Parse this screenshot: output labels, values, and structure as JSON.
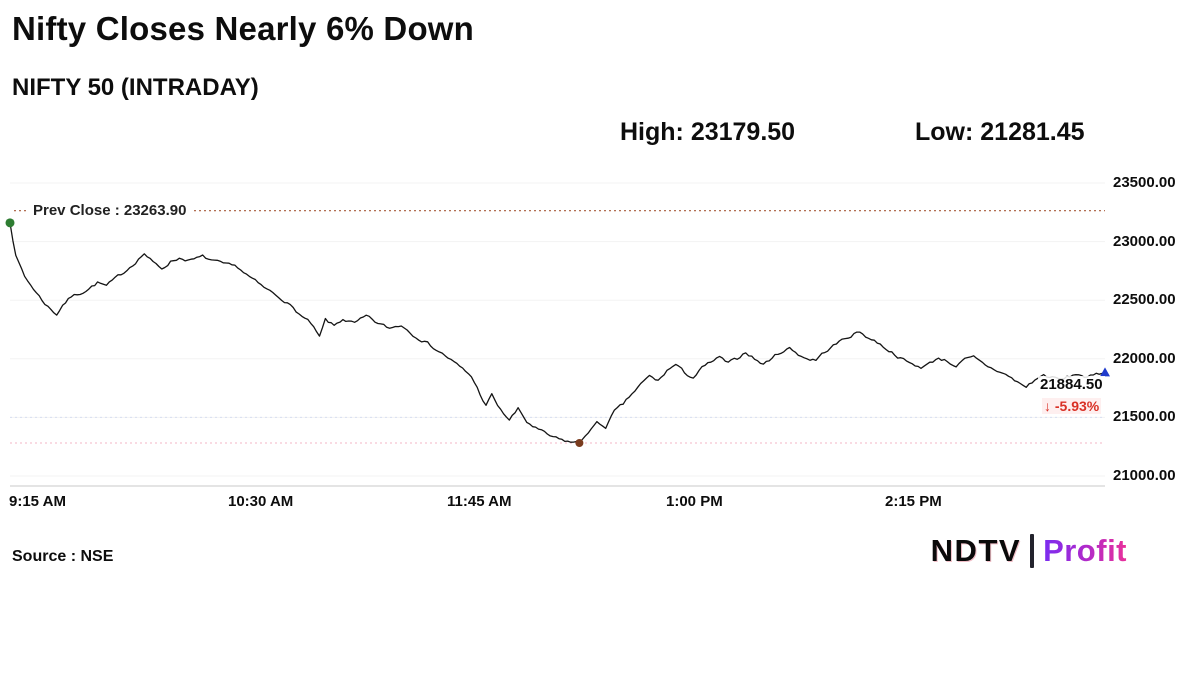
{
  "header": {
    "title": "Nifty Closes Nearly 6% Down",
    "subtitle": "NIFTY 50 (INTRADAY)",
    "high_label": "High: 23179.50",
    "low_label": "Low: 21281.45"
  },
  "chart_data": {
    "type": "line",
    "title": "NIFTY 50 (INTRADAY)",
    "prev_close": 23263.9,
    "prev_close_label": "Prev Close : 23263.90",
    "high": 23179.5,
    "low": 21281.45,
    "low_minute": 195,
    "last": 21884.5,
    "last_label": "21884.50",
    "change_label": "↓ -5.93%",
    "ylim": [
      21000,
      23500
    ],
    "xlim_minutes": [
      0,
      375
    ],
    "x_ticks": [
      {
        "minute": 0,
        "label": "9:15 AM"
      },
      {
        "minute": 75,
        "label": "10:30 AM"
      },
      {
        "minute": 150,
        "label": "11:45 AM"
      },
      {
        "minute": 225,
        "label": "1:00 PM"
      },
      {
        "minute": 300,
        "label": "2:15 PM"
      }
    ],
    "y_ticks": [
      {
        "value": 23500,
        "label": "23500.00"
      },
      {
        "value": 23000,
        "label": "23000.00"
      },
      {
        "value": 22500,
        "label": "22500.00"
      },
      {
        "value": 22000,
        "label": "22000.00"
      },
      {
        "value": 21500,
        "label": "21500.00"
      },
      {
        "value": 21000,
        "label": "21000.00"
      }
    ],
    "grid": "faint-horizontal",
    "legend": "none",
    "colors": {
      "line": "#141414",
      "prev_close_line": "#a85a3a",
      "low_guide_line": "#f3b6c4",
      "mid_guide_line": "#d7def2",
      "start_dot": "#2e7d32",
      "low_dot": "#7a3b1e",
      "end_marker": "#1f3bcc",
      "change_text": "#d93025",
      "axis_line": "#c9c9c9"
    },
    "series": [
      {
        "name": "NIFTY 50",
        "points": [
          [
            0,
            23160
          ],
          [
            1,
            23020
          ],
          [
            2,
            22900
          ],
          [
            3,
            22820
          ],
          [
            5,
            22700
          ],
          [
            8,
            22600
          ],
          [
            11,
            22500
          ],
          [
            14,
            22420
          ],
          [
            16,
            22380
          ],
          [
            18,
            22460
          ],
          [
            21,
            22530
          ],
          [
            24,
            22560
          ],
          [
            27,
            22600
          ],
          [
            30,
            22650
          ],
          [
            33,
            22620
          ],
          [
            36,
            22680
          ],
          [
            40,
            22760
          ],
          [
            43,
            22830
          ],
          [
            46,
            22900
          ],
          [
            49,
            22820
          ],
          [
            52,
            22770
          ],
          [
            55,
            22830
          ],
          [
            58,
            22860
          ],
          [
            62,
            22840
          ],
          [
            66,
            22870
          ],
          [
            70,
            22830
          ],
          [
            74,
            22800
          ],
          [
            78,
            22780
          ],
          [
            82,
            22700
          ],
          [
            86,
            22620
          ],
          [
            90,
            22560
          ],
          [
            94,
            22500
          ],
          [
            97,
            22430
          ],
          [
            100,
            22360
          ],
          [
            103,
            22300
          ],
          [
            106,
            22180
          ],
          [
            108,
            22330
          ],
          [
            111,
            22280
          ],
          [
            114,
            22340
          ],
          [
            118,
            22300
          ],
          [
            122,
            22360
          ],
          [
            126,
            22300
          ],
          [
            130,
            22260
          ],
          [
            134,
            22290
          ],
          [
            138,
            22210
          ],
          [
            142,
            22150
          ],
          [
            146,
            22080
          ],
          [
            150,
            22010
          ],
          [
            154,
            21930
          ],
          [
            158,
            21850
          ],
          [
            161,
            21700
          ],
          [
            163,
            21600
          ],
          [
            165,
            21690
          ],
          [
            168,
            21560
          ],
          [
            171,
            21480
          ],
          [
            174,
            21570
          ],
          [
            177,
            21460
          ],
          [
            180,
            21410
          ],
          [
            184,
            21350
          ],
          [
            188,
            21310
          ],
          [
            192,
            21290
          ],
          [
            195,
            21281.45
          ],
          [
            198,
            21380
          ],
          [
            201,
            21450
          ],
          [
            204,
            21420
          ],
          [
            207,
            21550
          ],
          [
            210,
            21610
          ],
          [
            213,
            21700
          ],
          [
            216,
            21780
          ],
          [
            219,
            21850
          ],
          [
            222,
            21810
          ],
          [
            225,
            21900
          ],
          [
            228,
            21950
          ],
          [
            231,
            21880
          ],
          [
            234,
            21840
          ],
          [
            237,
            21920
          ],
          [
            240,
            21970
          ],
          [
            243,
            22010
          ],
          [
            246,
            21960
          ],
          [
            249,
            22000
          ],
          [
            252,
            22060
          ],
          [
            255,
            22000
          ],
          [
            258,
            21950
          ],
          [
            261,
            22010
          ],
          [
            264,
            22060
          ],
          [
            267,
            22090
          ],
          [
            270,
            22040
          ],
          [
            273,
            22000
          ],
          [
            276,
            21990
          ],
          [
            279,
            22060
          ],
          [
            282,
            22110
          ],
          [
            285,
            22160
          ],
          [
            288,
            22200
          ],
          [
            291,
            22230
          ],
          [
            294,
            22180
          ],
          [
            297,
            22140
          ],
          [
            300,
            22090
          ],
          [
            303,
            22040
          ],
          [
            306,
            21990
          ],
          [
            309,
            21950
          ],
          [
            312,
            21930
          ],
          [
            315,
            21960
          ],
          [
            318,
            22010
          ],
          [
            321,
            21980
          ],
          [
            324,
            21940
          ],
          [
            327,
            21990
          ],
          [
            330,
            22010
          ],
          [
            333,
            21960
          ],
          [
            336,
            21920
          ],
          [
            339,
            21890
          ],
          [
            342,
            21850
          ],
          [
            345,
            21800
          ],
          [
            348,
            21760
          ],
          [
            351,
            21820
          ],
          [
            354,
            21860
          ],
          [
            357,
            21840
          ],
          [
            360,
            21820
          ],
          [
            363,
            21850
          ],
          [
            366,
            21870
          ],
          [
            369,
            21840
          ],
          [
            372,
            21860
          ],
          [
            375,
            21884.5
          ]
        ]
      }
    ]
  },
  "footer": {
    "source": "Source : NSE",
    "logo": {
      "ndtv": "NDTV",
      "separator": "|",
      "profit": "Profit"
    }
  }
}
